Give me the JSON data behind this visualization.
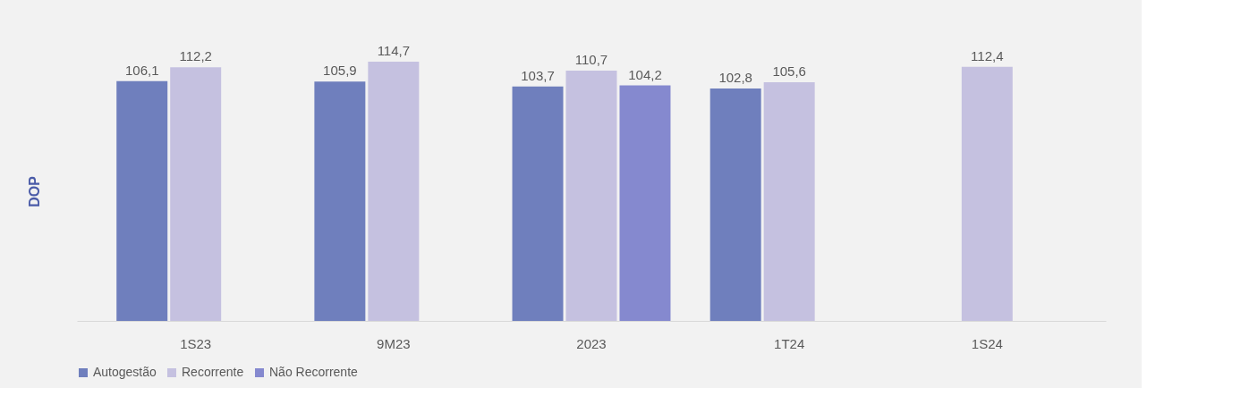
{
  "chart_data": {
    "type": "bar",
    "ylabel": "DOP",
    "categories": [
      "1S23",
      "9M23",
      "2023",
      "1T24",
      "1S24"
    ],
    "series": [
      {
        "name": "Autogestão",
        "color": "#6f7fbd",
        "values": [
          106.1,
          105.9,
          103.7,
          102.8,
          null
        ],
        "value_labels": [
          "106,1",
          "105,9",
          "103,7",
          "102,8",
          null
        ]
      },
      {
        "name": "Recorrente",
        "color": "#c5c1e0",
        "values": [
          112.2,
          114.7,
          110.7,
          105.6,
          112.4
        ],
        "value_labels": [
          "112,2",
          "114,7",
          "110,7",
          "105,6",
          "112,4"
        ]
      },
      {
        "name": "Não Recorrente",
        "color": "#8589cf",
        "values": [
          null,
          null,
          104.2,
          null,
          null
        ],
        "value_labels": [
          null,
          null,
          "104,2",
          null,
          null
        ]
      }
    ],
    "legend": "bottom",
    "grid": false
  }
}
